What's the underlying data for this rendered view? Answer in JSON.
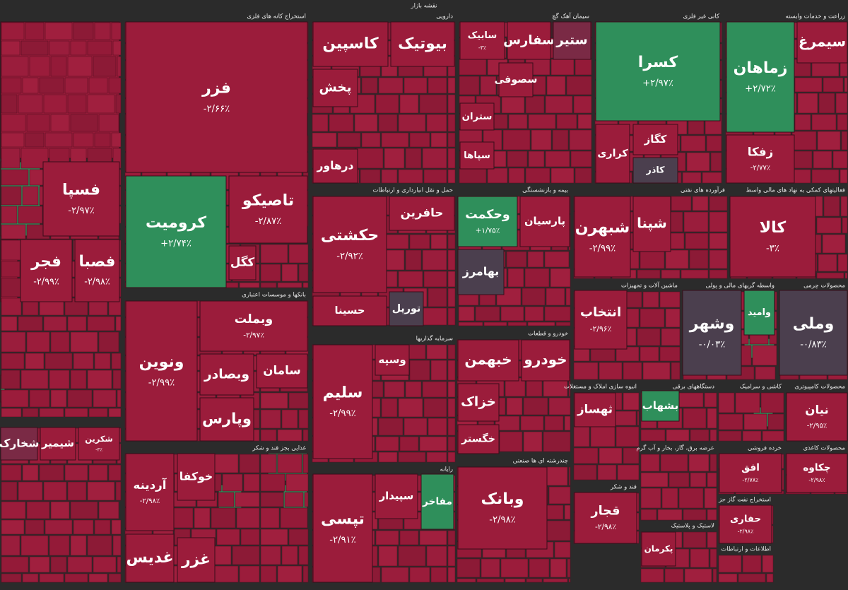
{
  "title": "نقشه بازار",
  "sectors": [
    {
      "tiles": [
        {
          "name": "فسپا",
          "change": "-۲/۹۷٪",
          "color": "#9b1c3b"
        },
        {
          "name": "فجر",
          "change": "-۲/۹۹٪",
          "color": "#9b1c3b"
        },
        {
          "name": "فصبا",
          "change": "-۲/۹۸٪",
          "color": "#9b1c3b"
        }
      ]
    },
    {
      "tiles": [
        {
          "name": "شکرین",
          "change": "-۳٪",
          "color": "#9b1c3b"
        },
        {
          "name": "شیمیر",
          "color": "#9b1c3b"
        },
        {
          "name": "شخارک",
          "color": "#7a2a45"
        }
      ]
    },
    {
      "name": "استخراج کانه های فلزی",
      "tiles": [
        {
          "name": "فزر",
          "change": "-۲/۶۶٪",
          "color": "#9b1c3b"
        },
        {
          "name": "کرومیت",
          "change": "+۲/۷۴٪",
          "color": "#2f8f5b"
        },
        {
          "name": "تاصیکو",
          "change": "-۲/۸۷٪",
          "color": "#9b1c3b"
        },
        {
          "name": "کگل",
          "color": "#9b1c3b"
        }
      ]
    },
    {
      "name": "بانکها و موسسات اعتباری",
      "tiles": [
        {
          "name": "ونوین",
          "change": "-۲/۹۹٪",
          "color": "#9b1c3b"
        },
        {
          "name": "وبملت",
          "change": "-۲/۹۷٪",
          "color": "#9b1c3b"
        },
        {
          "name": "وبصادر",
          "color": "#9b1c3b"
        },
        {
          "name": "سامان",
          "color": "#9b1c3b"
        },
        {
          "name": "وپارس",
          "color": "#9b1c3b"
        }
      ]
    },
    {
      "name": "غذایی بجز قند و شکر",
      "tiles": [
        {
          "name": "آردینه",
          "change": "-۲/۹۸٪",
          "color": "#9b1c3b"
        },
        {
          "name": "غدیس",
          "color": "#9b1c3b"
        },
        {
          "name": "خوکفا",
          "color": "#9b1c3b"
        },
        {
          "name": "غزر",
          "color": "#9b1c3b"
        }
      ]
    },
    {
      "name": "دارویی",
      "tiles": [
        {
          "name": "کاسپین",
          "color": "#9b1c3b"
        },
        {
          "name": "بیوتیک",
          "color": "#9b1c3b"
        },
        {
          "name": "پخش",
          "color": "#9b1c3b"
        },
        {
          "name": "درهاور",
          "color": "#9b1c3b"
        }
      ]
    },
    {
      "name": "سیمان آهک گچ",
      "tiles": [
        {
          "name": "سابیک",
          "change": "-۳٪",
          "color": "#9b1c3b"
        },
        {
          "name": "سفارس",
          "color": "#9b1c3b"
        },
        {
          "name": "ستیر",
          "color": "#7a2a45"
        },
        {
          "name": "سصوفی",
          "color": "#9b1c3b"
        },
        {
          "name": "ستران",
          "color": "#9b1c3b"
        },
        {
          "name": "سپاها",
          "color": "#9b1c3b"
        }
      ]
    },
    {
      "name": "کانی غیر فلزی",
      "tiles": [
        {
          "name": "کسرا",
          "change": "+۲/۹۷٪",
          "color": "#2f8f5b"
        },
        {
          "name": "کراری",
          "color": "#9b1c3b"
        },
        {
          "name": "کگاز",
          "color": "#9b1c3b"
        },
        {
          "name": "کاذر",
          "color": "#4b3f4e"
        }
      ]
    },
    {
      "name": "زراعت و خدمات وابسته",
      "tiles": [
        {
          "name": "زماهان",
          "change": "+۲/۷۲٪",
          "color": "#2f8f5b"
        },
        {
          "name": "زفکا",
          "change": "-۲/۷۷٪",
          "color": "#9b1c3b"
        },
        {
          "name": "سیمرغ",
          "color": "#9b1c3b"
        }
      ]
    },
    {
      "name": "حمل و نقل انبارداری و ارتباطات",
      "tiles": [
        {
          "name": "حکشتی",
          "change": "-۲/۹۲٪",
          "color": "#9b1c3b"
        },
        {
          "name": "حافرین",
          "color": "#9b1c3b"
        },
        {
          "name": "حسینا",
          "color": "#9b1c3b"
        },
        {
          "name": "تورپل",
          "color": "#4b3f4e"
        }
      ]
    },
    {
      "name": "بیمه و بازنشستگی",
      "tiles": [
        {
          "name": "وحکمت",
          "change": "+۱/۷۵٪",
          "color": "#2f8f5b"
        },
        {
          "name": "پارسیان",
          "color": "#9b1c3b"
        },
        {
          "name": "بهامرز",
          "color": "#4b3f4e"
        }
      ]
    },
    {
      "name": "فرآورده های نفتی",
      "tiles": [
        {
          "name": "شبهرن",
          "change": "-۲/۹۹٪",
          "color": "#9b1c3b"
        },
        {
          "name": "شپنا",
          "color": "#9b1c3b"
        }
      ]
    },
    {
      "name": "فعالیتهای کمکی به نهاد های مالی واسط",
      "tiles": [
        {
          "name": "کالا",
          "change": "-۳٪",
          "color": "#9b1c3b"
        }
      ]
    },
    {
      "name": "ماشین آلات و تجهیزات",
      "tiles": [
        {
          "name": "انتخاب",
          "change": "-۲/۹۶٪",
          "color": "#9b1c3b"
        }
      ]
    },
    {
      "name": "واسطه گریهای مالی و پولی",
      "tiles": [
        {
          "name": "وشهر",
          "change": "-۰/۰۳٪",
          "color": "#4b3f4e"
        },
        {
          "name": "وامید",
          "color": "#2f8f5b"
        }
      ]
    },
    {
      "name": "محصولات چرمی",
      "tiles": [
        {
          "name": "وملی",
          "change": "-۰/۸۳٪",
          "color": "#4b3f4e"
        }
      ]
    },
    {
      "name": "سرمایه گذاریها",
      "tiles": [
        {
          "name": "سلیم",
          "change": "-۲/۹۹٪",
          "color": "#9b1c3b"
        },
        {
          "name": "وسپه",
          "color": "#9b1c3b"
        }
      ]
    },
    {
      "name": "خودرو و قطعات",
      "tiles": [
        {
          "name": "خبهمن",
          "color": "#9b1c3b"
        },
        {
          "name": "خودرو",
          "color": "#9b1c3b"
        },
        {
          "name": "خزاک",
          "color": "#9b1c3b"
        },
        {
          "name": "خگستر",
          "color": "#9b1c3b"
        }
      ]
    },
    {
      "name": "رایانه",
      "tiles": [
        {
          "name": "تپسی",
          "change": "-۲/۹۱٪",
          "color": "#9b1c3b"
        },
        {
          "name": "سپیدار",
          "color": "#9b1c3b"
        },
        {
          "name": "مفاخر",
          "color": "#2f8f5b"
        }
      ]
    },
    {
      "name": "چندرشته ای ها صنعتی",
      "tiles": [
        {
          "name": "وبانک",
          "change": "-۲/۹۸٪",
          "color": "#9b1c3b"
        }
      ]
    },
    {
      "name": "انبوه سازی املاک و مستغلات",
      "tiles": [
        {
          "name": "ثهساز",
          "color": "#9b1c3b"
        }
      ]
    },
    {
      "name": "دستگاههای برقی",
      "tiles": [
        {
          "name": "بشهاب",
          "color": "#2f8f5b"
        }
      ]
    },
    {
      "name": "کاشی و سرامیک",
      "tiles": []
    },
    {
      "name": "محصولات کامپیوتری",
      "tiles": [
        {
          "name": "نیان",
          "change": "-۲/۹۵٪",
          "color": "#9b1c3b"
        }
      ]
    },
    {
      "name": "قند و شکر",
      "tiles": [
        {
          "name": "قجار",
          "change": "-۲/۹۸٪",
          "color": "#9b1c3b"
        }
      ]
    },
    {
      "name": "عرضه برق، گاز، بخار و آب گرم",
      "tiles": []
    },
    {
      "name": "خرده فروشی",
      "tiles": [
        {
          "name": "افق",
          "change": "-۲/۷۸٪",
          "color": "#9b1c3b"
        }
      ]
    },
    {
      "name": "محصولات کاغذی",
      "tiles": [
        {
          "name": "چکاوه",
          "change": "-۲/۹۸٪",
          "color": "#9b1c3b"
        }
      ]
    },
    {
      "name": "لاستیک و پلاستیک",
      "tiles": [
        {
          "name": "پکرمان",
          "color": "#9b1c3b"
        }
      ]
    },
    {
      "name": "استخراج نفت گاز جز",
      "tiles": [
        {
          "name": "حفاری",
          "change": "-۲/۹۸٪",
          "color": "#9b1c3b"
        }
      ]
    },
    {
      "name": "اطلاعات و ارتباطات",
      "tiles": []
    }
  ]
}
